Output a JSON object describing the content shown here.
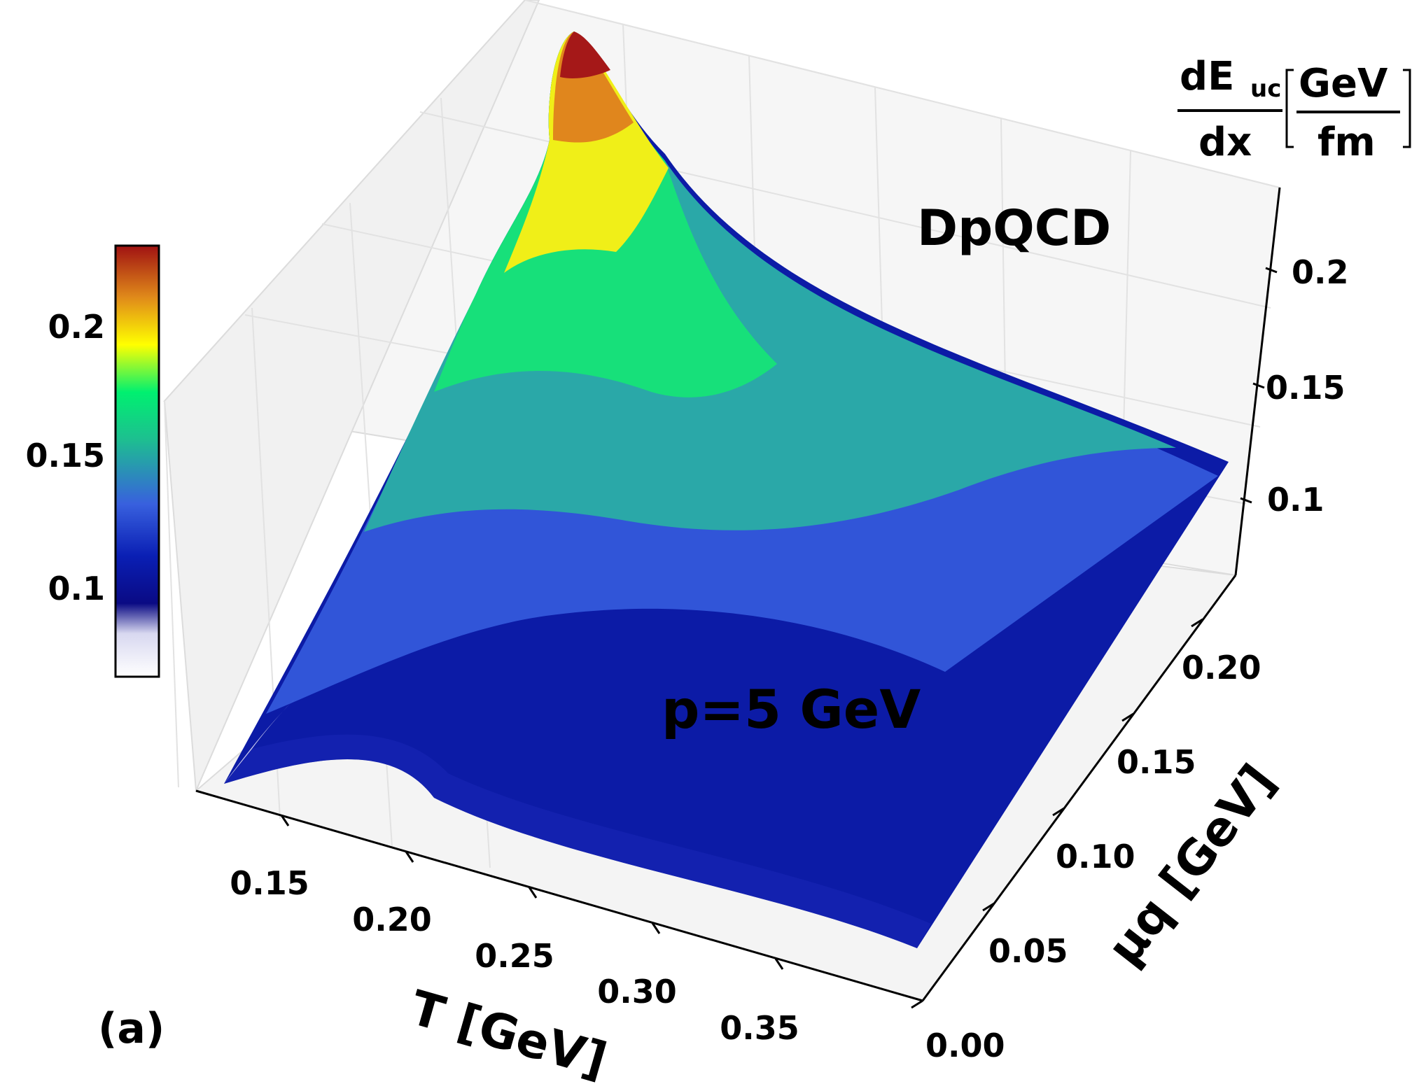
{
  "chart_data": {
    "type": "surface3d",
    "title": "",
    "panel_label": "(a)",
    "annotations": [
      "DpQCD",
      "p=5 GeV"
    ],
    "x_axis": {
      "label": "T [GeV]",
      "range": [
        0.12,
        0.38
      ],
      "ticks": [
        0.15,
        0.2,
        0.25,
        0.3,
        0.35
      ],
      "tick_labels": [
        "0.15",
        "0.20",
        "0.25",
        "0.30",
        "0.35"
      ]
    },
    "y_axis": {
      "label": "μq [GeV]",
      "range": [
        0.0,
        0.23
      ],
      "ticks": [
        0.0,
        0.05,
        0.1,
        0.15,
        0.2
      ],
      "tick_labels": [
        "0.00",
        "0.05",
        "0.10",
        "0.15",
        "0.20"
      ]
    },
    "z_axis": {
      "label_parts": {
        "num": "dE",
        "sub": "uc",
        "den": "dx",
        "unit_num": "GeV",
        "unit_den": "fm"
      },
      "range": [
        0.06,
        0.24
      ],
      "ticks": [
        0.1,
        0.15,
        0.2
      ],
      "tick_labels": [
        "0.1",
        "0.15",
        "0.2"
      ]
    },
    "colorbar": {
      "range": [
        0.065,
        0.225
      ],
      "ticks": [
        0.1,
        0.15,
        0.2
      ],
      "tick_labels": [
        "0.1",
        "0.15",
        "0.2"
      ],
      "colormap": [
        "#ffffff",
        "#0a0a84",
        "#0a1fb4",
        "#3860de",
        "#1dbf90",
        "#00f070",
        "#ffff00",
        "#e08a1a",
        "#a01212"
      ]
    },
    "grid": true,
    "surface_samples": {
      "T": [
        0.13,
        0.15,
        0.175,
        0.2,
        0.25,
        0.3,
        0.38
      ],
      "mu_q": [
        0.0,
        0.05,
        0.1,
        0.15,
        0.23
      ],
      "dEdx_at_mu_max": [
        0.14,
        0.19,
        0.23,
        0.19,
        0.15,
        0.13,
        0.12
      ],
      "dEdx_at_mu_zero": [
        0.06,
        0.075,
        0.085,
        0.08,
        0.075,
        0.078,
        0.085
      ]
    }
  }
}
